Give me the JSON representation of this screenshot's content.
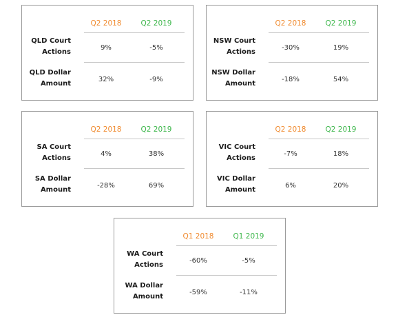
{
  "colors": {
    "period_one": "#f08a2e",
    "period_two": "#3cb64a"
  },
  "cards": {
    "qld": {
      "period_one": "Q2 2018",
      "period_two": "Q2 2019",
      "row1": {
        "label_line1": "QLD Court",
        "label_line2": "Actions",
        "v1": "9%",
        "v2": "-5%"
      },
      "row2": {
        "label_line1": "QLD Dollar",
        "label_line2": "Amount",
        "v1": "32%",
        "v2": "-9%"
      }
    },
    "nsw": {
      "period_one": "Q2 2018",
      "period_two": "Q2 2019",
      "row1": {
        "label_line1": "NSW Court",
        "label_line2": "Actions",
        "v1": "-30%",
        "v2": "19%"
      },
      "row2": {
        "label_line1": "NSW Dollar",
        "label_line2": "Amount",
        "v1": "-18%",
        "v2": "54%"
      }
    },
    "sa": {
      "period_one": "Q2 2018",
      "period_two": "Q2 2019",
      "row1": {
        "label_line1": "SA Court",
        "label_line2": "Actions",
        "v1": "4%",
        "v2": "38%"
      },
      "row2": {
        "label_line1": "SA Dollar",
        "label_line2": "Amount",
        "v1": "-28%",
        "v2": "69%"
      }
    },
    "vic": {
      "period_one": "Q2 2018",
      "period_two": "Q2 2019",
      "row1": {
        "label_line1": "VIC Court",
        "label_line2": "Actions",
        "v1": "-7%",
        "v2": "18%"
      },
      "row2": {
        "label_line1": "VIC Dollar",
        "label_line2": "Amount",
        "v1": "6%",
        "v2": "20%"
      }
    },
    "wa": {
      "period_one": "Q1 2018",
      "period_two": "Q1 2019",
      "row1": {
        "label_line1": "WA Court",
        "label_line2": "Actions",
        "v1": "-60%",
        "v2": "-5%"
      },
      "row2": {
        "label_line1": "WA Dollar",
        "label_line2": "Amount",
        "v1": "-59%",
        "v2": "-11%"
      }
    }
  }
}
